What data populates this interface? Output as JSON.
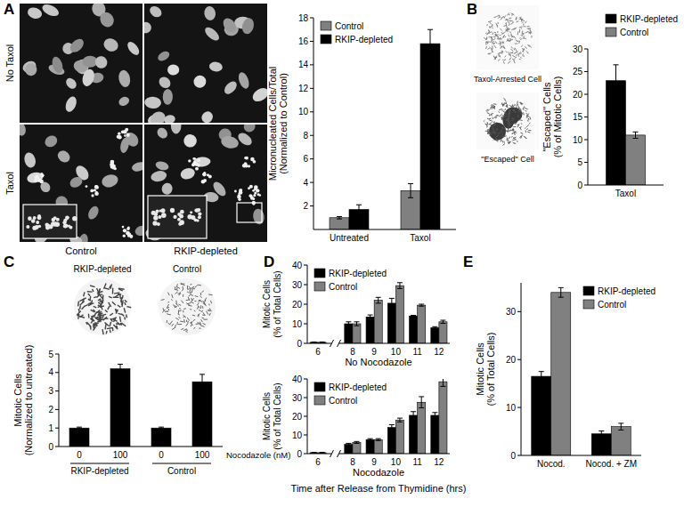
{
  "figure": {
    "panel_letters": [
      "A",
      "B",
      "C",
      "D",
      "E"
    ],
    "A": {
      "row_labels": [
        "No Taxol",
        "Taxol"
      ],
      "column_labels": [
        "Control",
        "RKIP-depleted"
      ]
    },
    "B": {
      "image_labels": [
        "Taxol-Arrested Cell",
        "\"Escaped\" Cell"
      ]
    },
    "C": {
      "image_labels": [
        "RKIP-depleted",
        "Control"
      ]
    }
  },
  "chart_data": [
    {
      "type": "bar",
      "y_label": [
        "Micronucleated Cells/Total",
        "(Normalized to Control)"
      ],
      "categories": [
        "Untreated",
        "Taxol"
      ],
      "series": [
        {
          "name": "Control",
          "color": "#808080",
          "values": [
            1,
            3.3
          ],
          "errors": [
            0.1,
            0.6
          ]
        },
        {
          "name": "RKIP-depleted",
          "color": "#000000",
          "values": [
            1.7,
            15.8
          ],
          "errors": [
            0.4,
            1.2
          ]
        }
      ],
      "ylim": [
        0,
        18
      ],
      "yticks": [
        2,
        4,
        6,
        8,
        10,
        12,
        14,
        16,
        18
      ],
      "legend": "upper left"
    },
    {
      "type": "bar",
      "y_label": [
        "\"Escaped\" Cells",
        "(% of Mitotic Cells)"
      ],
      "categories": [
        "Taxol"
      ],
      "series": [
        {
          "name": "RKIP-depleted",
          "color": "#000000",
          "values": [
            23
          ],
          "errors": [
            3.5
          ]
        },
        {
          "name": "Control",
          "color": "#808080",
          "values": [
            11
          ],
          "errors": [
            0.7
          ]
        }
      ],
      "ylim": [
        0,
        30
      ],
      "yticks": [
        0,
        5,
        10,
        15,
        20,
        25,
        30
      ],
      "legend": "upper right"
    },
    {
      "type": "bar",
      "y_label": [
        "Mitotic Cells",
        "(Normalized to untreated)"
      ],
      "categories": [
        "0",
        "100",
        "0",
        "100"
      ],
      "group_labels": [
        "RKIP-depleted",
        "Control"
      ],
      "x_label": "Nocodazole (nM)",
      "series": [
        {
          "color": "#000000",
          "values": [
            1,
            4.2,
            1,
            3.5
          ],
          "errors": [
            0.05,
            0.25,
            0.05,
            0.4
          ]
        }
      ],
      "ylim": [
        0,
        5
      ],
      "yticks": [
        0,
        1,
        2,
        3,
        4,
        5
      ]
    },
    {
      "type": "bar",
      "subtitle": "No Nocodazole",
      "y_label": [
        "Mitotic Cells",
        "(% of Total Cells)"
      ],
      "categories": [
        "6",
        "8",
        "9",
        "10",
        "11",
        "12"
      ],
      "series": [
        {
          "name": "RKIP-depleted",
          "color": "#000000",
          "values": [
            0.5,
            10,
            13.5,
            20.5,
            14,
            8
          ],
          "errors": [
            0.2,
            1,
            1,
            2.5,
            0.3,
            0.5
          ]
        },
        {
          "name": "Control",
          "color": "#808080",
          "values": [
            0.5,
            10,
            22,
            29.5,
            19.5,
            11
          ],
          "errors": [
            0.2,
            1,
            1.5,
            1.5,
            0.5,
            0.8
          ]
        }
      ],
      "ylim": [
        0,
        40
      ],
      "yticks": [
        0,
        10,
        20,
        30,
        40
      ],
      "legend": "upper left"
    },
    {
      "type": "bar",
      "subtitle": "Nocodazole",
      "y_label": [
        "Mitotic Cells",
        "(% of Total Cells)"
      ],
      "x_label": "Time after Release from Thymidine (hrs)",
      "categories": [
        "6",
        "8",
        "9",
        "10",
        "11",
        "12"
      ],
      "series": [
        {
          "name": "RKIP-depleted",
          "color": "#000000",
          "values": [
            0.5,
            5,
            7.5,
            14,
            20.5,
            20.5
          ],
          "errors": [
            0.2,
            0.5,
            0.5,
            1.5,
            2,
            1.5
          ]
        },
        {
          "name": "Control",
          "color": "#808080",
          "values": [
            0.5,
            6,
            7.5,
            18,
            27.5,
            38.5
          ],
          "errors": [
            0.2,
            0.5,
            0.5,
            1,
            3,
            2.5
          ]
        }
      ],
      "ylim": [
        0,
        40
      ],
      "yticks": [
        0,
        10,
        20,
        30,
        40
      ],
      "legend": "upper left"
    },
    {
      "type": "bar",
      "y_label": [
        "Mitotic Cells",
        "(% of Total Cells)"
      ],
      "categories": [
        "Nocod.",
        "Nocod. + ZM"
      ],
      "series": [
        {
          "name": "RKIP-depleted",
          "color": "#000000",
          "values": [
            16.5,
            4.5
          ],
          "errors": [
            1,
            0.6
          ]
        },
        {
          "name": "Control",
          "color": "#808080",
          "values": [
            34,
            6
          ],
          "errors": [
            1,
            0.7
          ]
        }
      ],
      "ylim": [
        0,
        36
      ],
      "yticks": [
        0,
        10,
        20,
        30
      ],
      "legend": "upper right"
    }
  ]
}
